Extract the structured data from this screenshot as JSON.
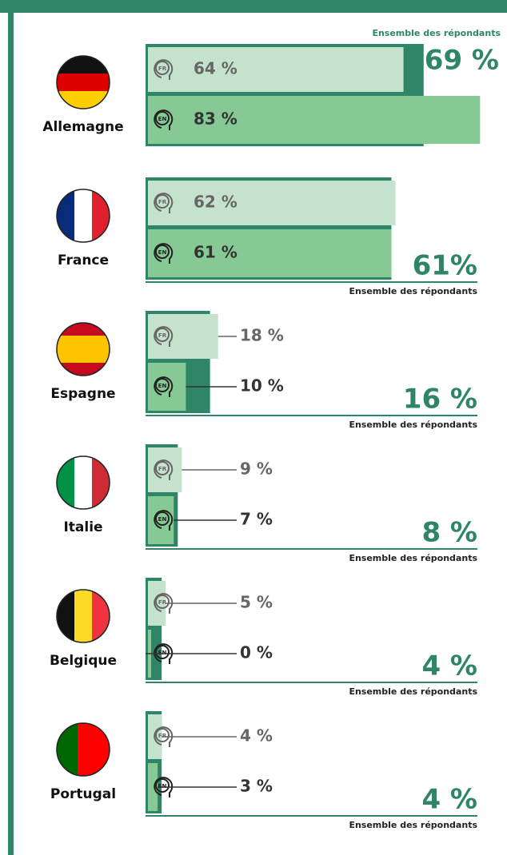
{
  "chart_data": {
    "type": "bar",
    "categories": [
      "Allemagne",
      "France",
      "Espagne",
      "Italie",
      "Belgique",
      "Portugal"
    ],
    "series": [
      {
        "name": "FR",
        "color": "#c5e3cc",
        "values": [
          64,
          62,
          18,
          9,
          5,
          4
        ],
        "value_labels": [
          "64 %",
          "62 %",
          "18 %",
          "9 %",
          "5 %",
          "4 %"
        ]
      },
      {
        "name": "EN",
        "color": "#86c994",
        "values": [
          83,
          61,
          10,
          7,
          0,
          3
        ],
        "value_labels": [
          "83 %",
          "61 %",
          "10 %",
          "7 %",
          "0 %",
          "3 %"
        ]
      },
      {
        "name": "Ensemble des répondants",
        "color": "#2e8567",
        "values": [
          69,
          61,
          16,
          8,
          4,
          4
        ],
        "value_labels": [
          "69 %",
          "61%",
          "16 %",
          "8 %",
          "4 %",
          "4 %"
        ]
      }
    ]
  }
}
